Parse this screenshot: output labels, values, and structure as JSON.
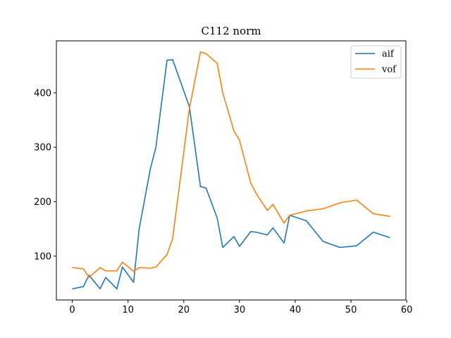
{
  "chart_data": {
    "type": "line",
    "title": "C112 norm",
    "xlabel": "",
    "ylabel": "",
    "xlim": [
      -2.85,
      59.85
    ],
    "ylim": [
      19.5,
      495.5
    ],
    "xticks": [
      0,
      10,
      20,
      30,
      40,
      50,
      60
    ],
    "yticks": [
      100,
      200,
      300,
      400
    ],
    "grid": false,
    "legend_position": "top-right",
    "series": [
      {
        "name": "aif",
        "color": "#1f77b4",
        "x": [
          0,
          2,
          3,
          5,
          6,
          8,
          9,
          11,
          12,
          14,
          15,
          17,
          18,
          21,
          23,
          24,
          26,
          27,
          29,
          30,
          32,
          33,
          35,
          36,
          38,
          39,
          42,
          45,
          48,
          51,
          54,
          57
        ],
        "y": [
          40,
          44,
          65,
          40,
          61,
          40,
          80,
          52,
          150,
          260,
          300,
          460,
          461,
          375,
          228,
          225,
          170,
          116,
          136,
          118,
          145,
          144,
          139,
          152,
          124,
          175,
          165,
          127,
          116,
          119,
          144,
          134
        ]
      },
      {
        "name": "vof",
        "color": "#ff7f0e",
        "x": [
          0,
          2,
          3,
          5,
          6,
          8,
          9,
          11,
          12,
          14,
          15,
          17,
          18,
          21,
          23,
          24,
          26,
          27,
          29,
          30,
          32,
          33,
          35,
          36,
          38,
          39,
          42,
          45,
          48,
          51,
          54,
          57
        ],
        "y": [
          79,
          77,
          61,
          79,
          73,
          73,
          89,
          72,
          79,
          78,
          80,
          103,
          132,
          370,
          475,
          472,
          454,
          400,
          330,
          313,
          235,
          215,
          184,
          195,
          161,
          175,
          183,
          187,
          198,
          203,
          178,
          173
        ]
      }
    ],
    "axis_labels": {
      "xtick_labels": [
        "0",
        "10",
        "20",
        "30",
        "40",
        "50",
        "60"
      ],
      "ytick_labels": [
        "100",
        "200",
        "300",
        "400"
      ]
    }
  }
}
